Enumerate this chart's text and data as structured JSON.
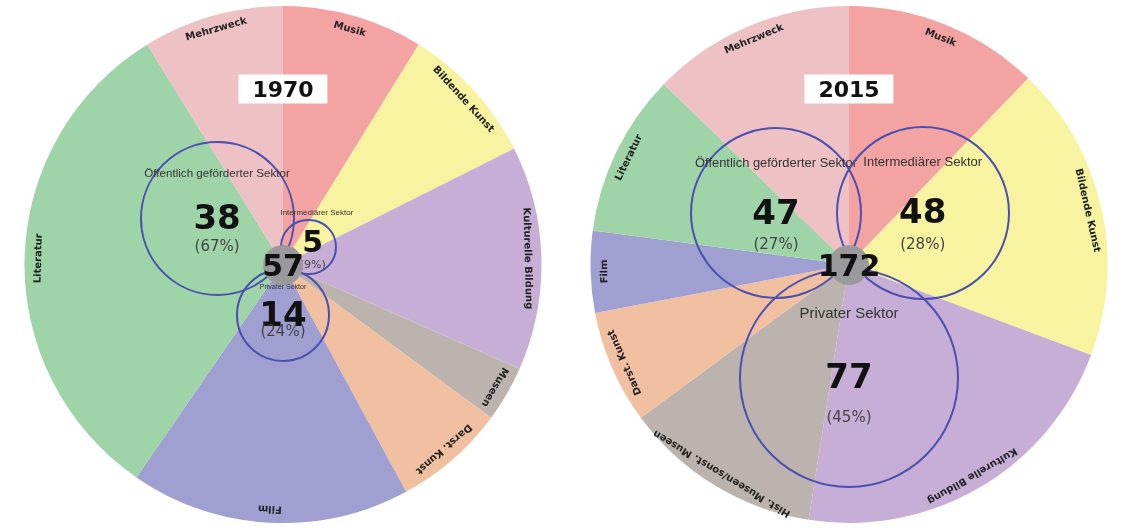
{
  "chart_data": [
    {
      "type": "pie",
      "title": "1970",
      "categories": [
        "Musik",
        "Bildende Kunst",
        "Kulturelle Bildung",
        "Museen",
        "Darst. Kunst",
        "Film",
        "Literatur",
        "Mehrzweck"
      ],
      "values": [
        8.8,
        8.8,
        14.0,
        3.5,
        7.0,
        17.5,
        31.6,
        8.8
      ],
      "colors": [
        "#f4a3a3",
        "#f7f3a1",
        "#c7aed6",
        "#bdb3ae",
        "#f0c0a0",
        "#a09fd2",
        "#9fd4a9",
        "#eec1c4"
      ],
      "annotations": [
        "57",
        "Öffentlich geförderter Sektor",
        "38",
        "(67%)",
        "Intermediärer Sektor",
        "5",
        "(9%)",
        "Privater Sektor",
        "14",
        "(24%)"
      ]
    },
    {
      "type": "pie",
      "title": "2015",
      "categories": [
        "Musik",
        "Bildende Kunst",
        "Kulturelle Bildung",
        "Hist. Museen/sonst. Museen",
        "Darst. Kunst",
        "Film",
        "Literatur",
        "Mehrzweck"
      ],
      "values": [
        12.2,
        18.5,
        21.8,
        12.4,
        7.1,
        5.1,
        10.2,
        12.7
      ],
      "colors": [
        "#f4a3a3",
        "#f7f3a1",
        "#c7aed6",
        "#bdb3ae",
        "#f0c0a0",
        "#a09fd2",
        "#9fd4a9",
        "#eec1c4"
      ],
      "annotations": [
        "172",
        "Öffentlich geförderter Sektor",
        "47",
        "(27%)",
        "Intermediärer Sektor",
        "48",
        "(28%)",
        "Privater Sektor",
        "77",
        "(45%)"
      ]
    }
  ]
}
